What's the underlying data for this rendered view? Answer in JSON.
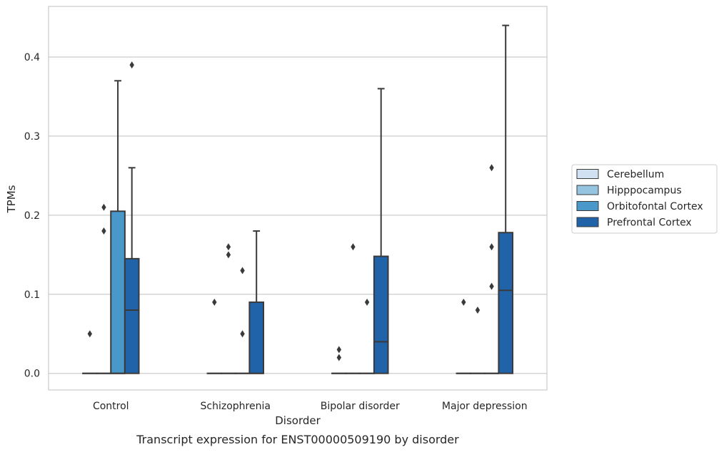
{
  "chart_data": {
    "type": "box",
    "title": "",
    "caption": "Transcript expression for ENST00000509190 by disorder",
    "xlabel": "Disorder",
    "ylabel": "TPMs",
    "ylim": [
      -0.021,
      0.464
    ],
    "yticks": [
      "0.0",
      "0.1",
      "0.2",
      "0.3",
      "0.4"
    ],
    "grid": "horizontal",
    "legend_position": "right",
    "categories": [
      "Control",
      "Schizophrenia",
      "Bipolar disorder",
      "Major depression"
    ],
    "series": [
      {
        "name": "Cerebellum",
        "color": "#d0e1f2",
        "boxes": [
          {
            "q1": 0,
            "median": 0,
            "q3": 0,
            "whisker_low": 0,
            "whisker_high": 0,
            "outliers": [
              0.05
            ]
          },
          {
            "q1": 0,
            "median": 0,
            "q3": 0,
            "whisker_low": 0,
            "whisker_high": 0,
            "outliers": [
              0.09
            ]
          },
          {
            "q1": 0,
            "median": 0,
            "q3": 0,
            "whisker_low": 0,
            "whisker_high": 0,
            "outliers": [
              0.02,
              0.03
            ]
          },
          {
            "q1": 0,
            "median": 0,
            "q3": 0,
            "whisker_low": 0,
            "whisker_high": 0,
            "outliers": [
              0.09
            ]
          }
        ]
      },
      {
        "name": "Hipppocampus",
        "color": "#94c4df",
        "boxes": [
          {
            "q1": 0,
            "median": 0,
            "q3": 0,
            "whisker_low": 0,
            "whisker_high": 0,
            "outliers": [
              0.18,
              0.21
            ]
          },
          {
            "q1": 0,
            "median": 0,
            "q3": 0,
            "whisker_low": 0,
            "whisker_high": 0,
            "outliers": [
              0.15,
              0.16
            ]
          },
          {
            "q1": 0,
            "median": 0,
            "q3": 0,
            "whisker_low": 0,
            "whisker_high": 0,
            "outliers": [
              0.16
            ]
          },
          {
            "q1": 0,
            "median": 0,
            "q3": 0,
            "whisker_low": 0,
            "whisker_high": 0,
            "outliers": [
              0.08
            ]
          }
        ]
      },
      {
        "name": "Orbitofontal Cortex",
        "color": "#4a98c9",
        "boxes": [
          {
            "q1": 0,
            "median": 0,
            "q3": 0.205,
            "whisker_low": 0,
            "whisker_high": 0.37,
            "outliers": []
          },
          {
            "q1": 0,
            "median": 0,
            "q3": 0,
            "whisker_low": 0,
            "whisker_high": 0,
            "outliers": [
              0.05,
              0.13
            ]
          },
          {
            "q1": 0,
            "median": 0,
            "q3": 0,
            "whisker_low": 0,
            "whisker_high": 0,
            "outliers": [
              0.09
            ]
          },
          {
            "q1": 0,
            "median": 0,
            "q3": 0,
            "whisker_low": 0,
            "whisker_high": 0,
            "outliers": [
              0.11,
              0.16,
              0.26
            ]
          }
        ]
      },
      {
        "name": "Prefrontal Cortex",
        "color": "#2163a8",
        "boxes": [
          {
            "q1": 0,
            "median": 0.08,
            "q3": 0.145,
            "whisker_low": 0,
            "whisker_high": 0.26,
            "outliers": [
              0.39
            ]
          },
          {
            "q1": 0,
            "median": 0,
            "q3": 0.09,
            "whisker_low": 0,
            "whisker_high": 0.18,
            "outliers": []
          },
          {
            "q1": 0,
            "median": 0.04,
            "q3": 0.148,
            "whisker_low": 0,
            "whisker_high": 0.36,
            "outliers": []
          },
          {
            "q1": 0,
            "median": 0.105,
            "q3": 0.178,
            "whisker_low": 0,
            "whisker_high": 0.44,
            "outliers": []
          }
        ]
      }
    ]
  }
}
